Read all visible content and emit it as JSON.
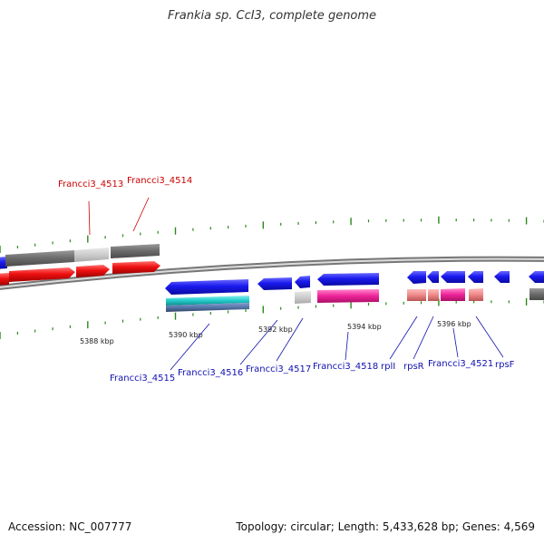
{
  "title": "Frankia sp. CcI3, complete genome",
  "footer": {
    "accession": "Accession: NC_007777",
    "summary": "Topology: circular; Length: 5,433,628 bp; Genes: 4,569"
  },
  "colors": {
    "backbone": "#8a8a8a",
    "tick": "#2a8a1a",
    "label_red": "#cc0000",
    "label_blue": "#1010b0",
    "gene_blue": "#1a1aee",
    "gene_red": "#ee1111",
    "gene_dark_gray": "#6a6a6a",
    "gene_light_gray": "#cccccc",
    "gene_cyan": "#22cccc",
    "gene_steel": "#5577aa",
    "gene_magenta": "#ee2299",
    "gene_salmon": "#ee8888"
  },
  "scale_labels": [
    "5388 kbp",
    "5390 kbp",
    "5392 kbp",
    "5394 kbp",
    "5396 kbp"
  ],
  "top_labels": [
    "Francci3_4513",
    "Francci3_4514"
  ],
  "bottom_labels": [
    "Francci3_4515",
    "Francci3_4516",
    "Francci3_4517",
    "Francci3_4518",
    "rplI",
    "rpsR",
    "Francci3_4521",
    "rpsF"
  ]
}
